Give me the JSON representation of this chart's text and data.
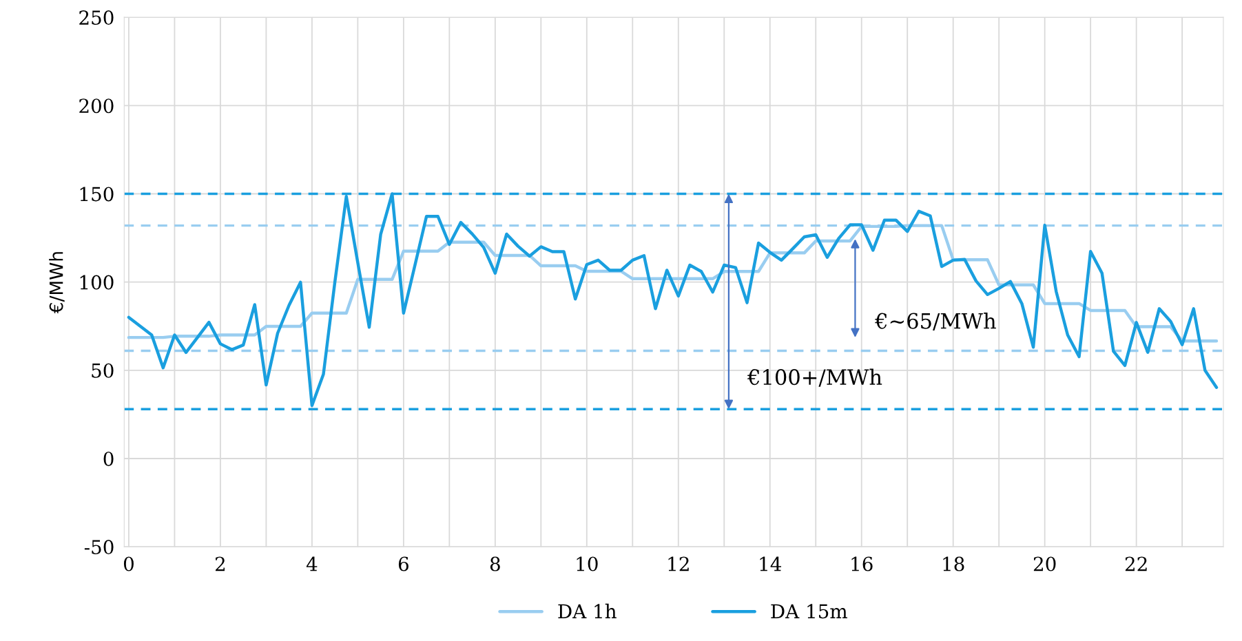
{
  "chart_data": {
    "type": "line",
    "ylabel": "€/MWh",
    "x": [
      0,
      0.25,
      0.5,
      0.75,
      1,
      1.25,
      1.5,
      1.75,
      2,
      2.25,
      2.5,
      2.75,
      3,
      3.25,
      3.5,
      3.75,
      4,
      4.25,
      4.5,
      4.75,
      5,
      5.25,
      5.5,
      5.75,
      6,
      6.25,
      6.5,
      6.75,
      7,
      7.25,
      7.5,
      7.75,
      8,
      8.25,
      8.5,
      8.75,
      9,
      9.25,
      9.5,
      9.75,
      10,
      10.25,
      10.5,
      10.75,
      11,
      11.25,
      11.5,
      11.75,
      12,
      12.25,
      12.5,
      12.75,
      13,
      13.25,
      13.5,
      13.75,
      14,
      14.25,
      14.5,
      14.75,
      15,
      15.25,
      15.5,
      15.75,
      16,
      16.25,
      16.5,
      16.75,
      17,
      17.25,
      17.5,
      17.75,
      18,
      18.25,
      18.5,
      18.75,
      19,
      19.25,
      19.5,
      19.75,
      20,
      20.25,
      20.5,
      20.75,
      21,
      21.25,
      21.5,
      21.75,
      22,
      22.25,
      22.5,
      22.75,
      23,
      23.25,
      23.5,
      23.75
    ],
    "series": [
      {
        "name": "DA 1h",
        "color": "#99cdf0",
        "values": [
          68.6,
          68.6,
          68.6,
          68.6,
          69.3,
          69.3,
          69.3,
          69.3,
          70,
          70,
          70,
          70,
          74.9,
          74.9,
          74.9,
          74.9,
          82.4,
          82.4,
          82.4,
          82.4,
          101.5,
          101.5,
          101.5,
          101.5,
          117.5,
          117.5,
          117.5,
          117.5,
          122.6,
          122.6,
          122.6,
          122.6,
          115.1,
          115.1,
          115.1,
          115.1,
          109.2,
          109.2,
          109.2,
          109.2,
          106.1,
          106.1,
          106.1,
          106.1,
          101.9,
          101.9,
          101.9,
          101.9,
          101.9,
          101.9,
          101.9,
          101.9,
          106,
          106,
          106,
          106,
          116.5,
          116.5,
          116.5,
          116.5,
          123.3,
          123.3,
          123.3,
          123.3,
          131.5,
          131.5,
          131.5,
          131.5,
          132,
          132,
          132,
          132,
          112.6,
          112.6,
          112.6,
          112.6,
          98.4,
          98.4,
          98.4,
          98.4,
          87.8,
          87.8,
          87.8,
          87.8,
          83.9,
          83.9,
          83.9,
          83.9,
          74.7,
          74.7,
          74.7,
          74.7,
          66.6,
          66.6,
          66.6,
          66.6
        ]
      },
      {
        "name": "DA 15m",
        "color": "#1a9fdf",
        "values": [
          80,
          75,
          70,
          51.4,
          70,
          60.1,
          68.6,
          77.2,
          65,
          61.7,
          64.3,
          87.2,
          41.7,
          71,
          86.9,
          99.9,
          30,
          47.8,
          100,
          148.5,
          111,
          74.4,
          127,
          150,
          82.4,
          109.7,
          137.2,
          137.2,
          121.3,
          133.8,
          127.2,
          119.6,
          105,
          127.2,
          120.3,
          114.7,
          120,
          117.2,
          117.2,
          90.4,
          109.9,
          112.4,
          106.7,
          106.7,
          112.4,
          115,
          84.9,
          106.7,
          92.1,
          109.6,
          106,
          94.3,
          109.6,
          108.2,
          88.3,
          122.1,
          116.8,
          112.4,
          118.9,
          125.6,
          126.8,
          114,
          124.7,
          132.4,
          132.4,
          118,
          135.1,
          135.1,
          128.7,
          140.1,
          137.5,
          108.8,
          112.4,
          112.8,
          100.6,
          92.9,
          96.4,
          100.3,
          87.8,
          63.1,
          132.2,
          94.6,
          70,
          57.7,
          117.3,
          105,
          60.8,
          52.7,
          77.1,
          60.2,
          84.9,
          77.6,
          64.5,
          84.9,
          49.9,
          40.3
        ]
      }
    ],
    "xlim": [
      -0.1,
      23.9
    ],
    "xticks": [
      0,
      {
        "value": 1,
        "label": null
      },
      2,
      {
        "value": 3,
        "label": null
      },
      4,
      {
        "value": 5,
        "label": null
      },
      6,
      {
        "value": 7,
        "label": null
      },
      8,
      {
        "value": 9,
        "label": null
      },
      10,
      {
        "value": 11,
        "label": null
      },
      12,
      {
        "value": 13,
        "label": null
      },
      14,
      {
        "value": 15,
        "label": null
      },
      16,
      {
        "value": 17,
        "label": null
      },
      18,
      {
        "value": 19,
        "label": null
      },
      20,
      {
        "value": 21,
        "label": null
      },
      22,
      {
        "value": 23,
        "label": null
      }
    ],
    "ylim": [
      -50,
      250
    ],
    "yticks": [
      -50,
      0,
      50,
      100,
      150,
      200,
      250
    ],
    "ref_lines": [
      {
        "axis": "y",
        "value": 150,
        "color": "#1a9fdf",
        "line_style": "dashed"
      },
      {
        "axis": "y",
        "value": 28,
        "color": "#1a9fdf",
        "line_style": "dashed"
      },
      {
        "axis": "y",
        "value": 132,
        "color": "#99cdf0",
        "line_style": "dashed"
      },
      {
        "axis": "y",
        "value": 61,
        "color": "#99cdf0",
        "line_style": "dashed"
      }
    ],
    "annotations": [
      "€100+/MWh",
      "€~65/MWh"
    ],
    "grid": true,
    "legend": "bottom",
    "marker": "none",
    "line_style": "solid"
  }
}
